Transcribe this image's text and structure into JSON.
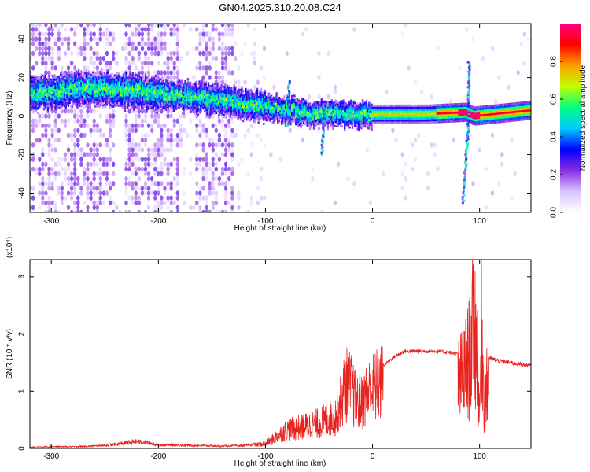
{
  "title": "GN04.2025.310.20.08.C24",
  "chart_data": [
    {
      "type": "heatmap",
      "name": "spectrogram",
      "xlabel": "Height of straight line (km)",
      "ylabel": "Frequency (Hz)",
      "xlim": [
        -320,
        148
      ],
      "ylim": [
        -50,
        48
      ],
      "xticks": [
        -300,
        -200,
        -100,
        0,
        100
      ],
      "yticks": [
        -40,
        -20,
        0,
        20,
        40
      ],
      "colorbar": {
        "label": "Normalized spectral amplitude",
        "range": [
          0,
          1
        ],
        "ticks": [
          "0.0",
          "0.2",
          "0.4",
          "0.6",
          "0.8"
        ],
        "colormap": [
          "#ffffff",
          "#d8c4ff",
          "#8a2be2",
          "#0000ff",
          "#00c8ff",
          "#00ff80",
          "#c0ff00",
          "#ffa000",
          "#ff0000",
          "#ff0080"
        ]
      },
      "ridge": [
        {
          "x": -300,
          "y": 12
        },
        {
          "x": -270,
          "y": 15
        },
        {
          "x": -250,
          "y": 14
        },
        {
          "x": -200,
          "y": 12
        },
        {
          "x": -150,
          "y": 9
        },
        {
          "x": -100,
          "y": 5
        },
        {
          "x": -75,
          "y": 3
        },
        {
          "x": -50,
          "y": 1
        },
        {
          "x": -25,
          "y": 1
        },
        {
          "x": 0,
          "y": 1
        },
        {
          "x": 50,
          "y": 1
        },
        {
          "x": 88,
          "y": 2
        },
        {
          "x": 95,
          "y": 0
        },
        {
          "x": 148,
          "y": 3
        }
      ],
      "transients": [
        {
          "x": 90,
          "y_range": [
            -45,
            28
          ]
        },
        {
          "x": -78,
          "y_range": [
            -5,
            18
          ]
        },
        {
          "x": -45,
          "y_range": [
            -20,
            4
          ]
        }
      ]
    },
    {
      "type": "line",
      "name": "snr",
      "xlabel": "Height of straight line (km)",
      "ylabel": "SNR (10 * v/v)",
      "y_multiplier": "(x10⁴)",
      "xlim": [
        -320,
        148
      ],
      "ylim": [
        0,
        3.3
      ],
      "xticks": [
        -300,
        -200,
        -100,
        0,
        100
      ],
      "yticks": [
        0,
        1,
        2,
        3
      ],
      "color": "#e8231f",
      "series": [
        {
          "x": [
            -320,
            -300,
            -280,
            -260,
            -240,
            -220,
            -210,
            -200,
            -180,
            -160,
            -140,
            -120,
            -100,
            -90,
            -80,
            -70,
            -60,
            -50,
            -45,
            -40,
            -35,
            -30,
            -25,
            -20,
            -15,
            -10,
            -5,
            0,
            10,
            20,
            30,
            40,
            50,
            60,
            70,
            80,
            85,
            90,
            95,
            98,
            100,
            102,
            104,
            108,
            115,
            130,
            148
          ],
          "y": [
            0.02,
            0.03,
            0.03,
            0.04,
            0.07,
            0.12,
            0.1,
            0.06,
            0.06,
            0.05,
            0.04,
            0.05,
            0.1,
            0.25,
            0.4,
            0.45,
            0.5,
            0.55,
            0.6,
            0.65,
            0.7,
            1.0,
            1.4,
            1.3,
            1.0,
            1.0,
            1.2,
            1.3,
            1.45,
            1.6,
            1.7,
            1.7,
            1.7,
            1.7,
            1.68,
            1.65,
            1.8,
            2.2,
            3.1,
            2.3,
            0.8,
            3.3,
            1.2,
            1.6,
            1.55,
            1.5,
            1.45
          ]
        }
      ]
    }
  ]
}
